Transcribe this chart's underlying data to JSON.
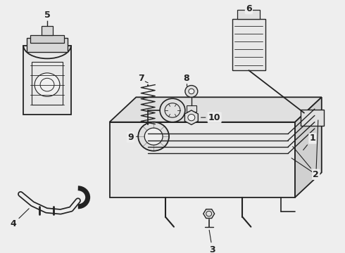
{
  "bg_color": "#eeeeee",
  "fg_color": "#222222",
  "figsize": [
    4.9,
    3.6
  ],
  "dpi": 100
}
